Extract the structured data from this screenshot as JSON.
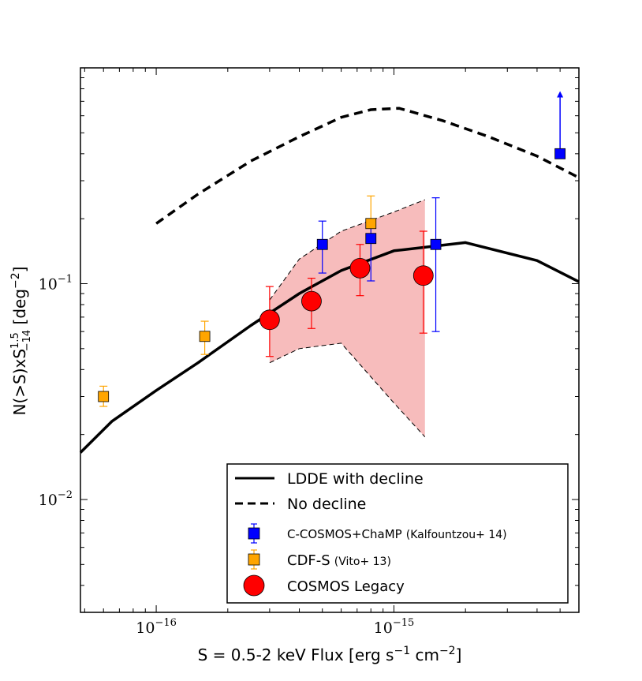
{
  "chart_data": {
    "type": "scatter",
    "xscale": "log",
    "yscale": "log",
    "xlim": [
      4.8e-17,
      6e-15
    ],
    "ylim": [
      0.003,
      1.0
    ],
    "xlabel": {
      "main": "S = 0.5-2 keV Flux [erg s",
      "sup1": "−1",
      "mid": " cm",
      "sup2": "−2",
      "end": "]"
    },
    "ylabel": {
      "main": "N(>S)xS",
      "sup": "1.5",
      "sub": "−14",
      "end": " [deg",
      "sup2": "−2",
      "close": "]"
    },
    "x_ticks": [
      {
        "value": 1e-16,
        "base": "10",
        "exp": "−16"
      },
      {
        "value": 1e-15,
        "base": "10",
        "exp": "−15"
      }
    ],
    "y_ticks": [
      {
        "value": 0.01,
        "base": "10",
        "exp": "−2"
      },
      {
        "value": 0.1,
        "base": "10",
        "exp": "−1"
      }
    ],
    "models": [
      {
        "name": "LDDE with decline",
        "style": "solid",
        "color": "#000000",
        "x": [
          4.8e-17,
          6.5e-17,
          1e-16,
          1.5e-16,
          2.5e-16,
          4e-16,
          6e-16,
          1e-15,
          2e-15,
          4e-15,
          6e-15
        ],
        "y": [
          0.0165,
          0.023,
          0.032,
          0.043,
          0.064,
          0.09,
          0.115,
          0.142,
          0.155,
          0.128,
          0.102
        ]
      },
      {
        "name": "No decline",
        "style": "dashed",
        "color": "#000000",
        "x": [
          1e-16,
          1.5e-16,
          2.5e-16,
          4e-16,
          6e-16,
          8e-16,
          1.05e-15,
          1.6e-15,
          2.5e-15,
          4e-15,
          6e-15
        ],
        "y": [
          0.19,
          0.26,
          0.37,
          0.48,
          0.59,
          0.64,
          0.65,
          0.57,
          0.48,
          0.39,
          0.31
        ]
      }
    ],
    "band": {
      "series": "COSMOS Legacy",
      "color": "#f4a6a6",
      "x": [
        3e-16,
        4e-16,
        6e-16,
        1e-15,
        1.35e-15
      ],
      "upper": [
        0.084,
        0.13,
        0.175,
        0.215,
        0.245
      ],
      "lower": [
        0.043,
        0.05,
        0.053,
        0.028,
        0.0195
      ]
    },
    "series": [
      {
        "name": "COSMOS Legacy",
        "marker": "circle",
        "color": "#ff0000",
        "points": [
          {
            "x": 3e-16,
            "y": 0.068,
            "ylo": 0.046,
            "yhi": 0.097
          },
          {
            "x": 4.5e-16,
            "y": 0.083,
            "ylo": 0.062,
            "yhi": 0.106
          },
          {
            "x": 7.2e-16,
            "y": 0.118,
            "ylo": 0.088,
            "yhi": 0.152
          },
          {
            "x": 1.33e-15,
            "y": 0.109,
            "ylo": 0.059,
            "yhi": 0.175
          }
        ]
      },
      {
        "name": "C-COSMOS+ChaMP",
        "ref": "(Kalfountzou+ 14)",
        "marker": "square",
        "color": "#0000ff",
        "points": [
          {
            "x": 5e-16,
            "y": 0.152,
            "ylo": 0.112,
            "yhi": 0.195
          },
          {
            "x": 8e-16,
            "y": 0.162,
            "ylo": 0.103,
            "yhi": 0.2
          },
          {
            "x": 1.5e-15,
            "y": 0.152,
            "ylo": 0.06,
            "yhi": 0.25
          },
          {
            "x": 5e-15,
            "y": 0.4,
            "yhi": 0.78,
            "lower_limit": true
          }
        ]
      },
      {
        "name": "CDF-S",
        "ref": "(Vito+ 13)",
        "marker": "square",
        "color": "#ffa500",
        "points": [
          {
            "x": 6e-17,
            "y": 0.03,
            "ylo": 0.027,
            "yhi": 0.0335
          },
          {
            "x": 1.6e-16,
            "y": 0.057,
            "ylo": 0.047,
            "yhi": 0.067
          },
          {
            "x": 8e-16,
            "y": 0.19,
            "ylo": 0.155,
            "yhi": 0.255
          }
        ]
      }
    ],
    "legend": {
      "location": "lower-right",
      "entries": [
        {
          "label": "LDDE with decline",
          "ref": "",
          "kind": "line-solid",
          "color": "#000000"
        },
        {
          "label": "No decline",
          "ref": "",
          "kind": "line-dashed",
          "color": "#000000"
        },
        {
          "label": "C-COSMOS+ChaMP",
          "ref": "(Kalfountzou+ 14)",
          "kind": "square",
          "color": "#0000ff"
        },
        {
          "label": "CDF-S",
          "ref": "(Vito+ 13)",
          "kind": "square",
          "color": "#ffa500"
        },
        {
          "label": "COSMOS Legacy",
          "ref": "",
          "kind": "circle",
          "color": "#ff0000"
        }
      ]
    }
  }
}
